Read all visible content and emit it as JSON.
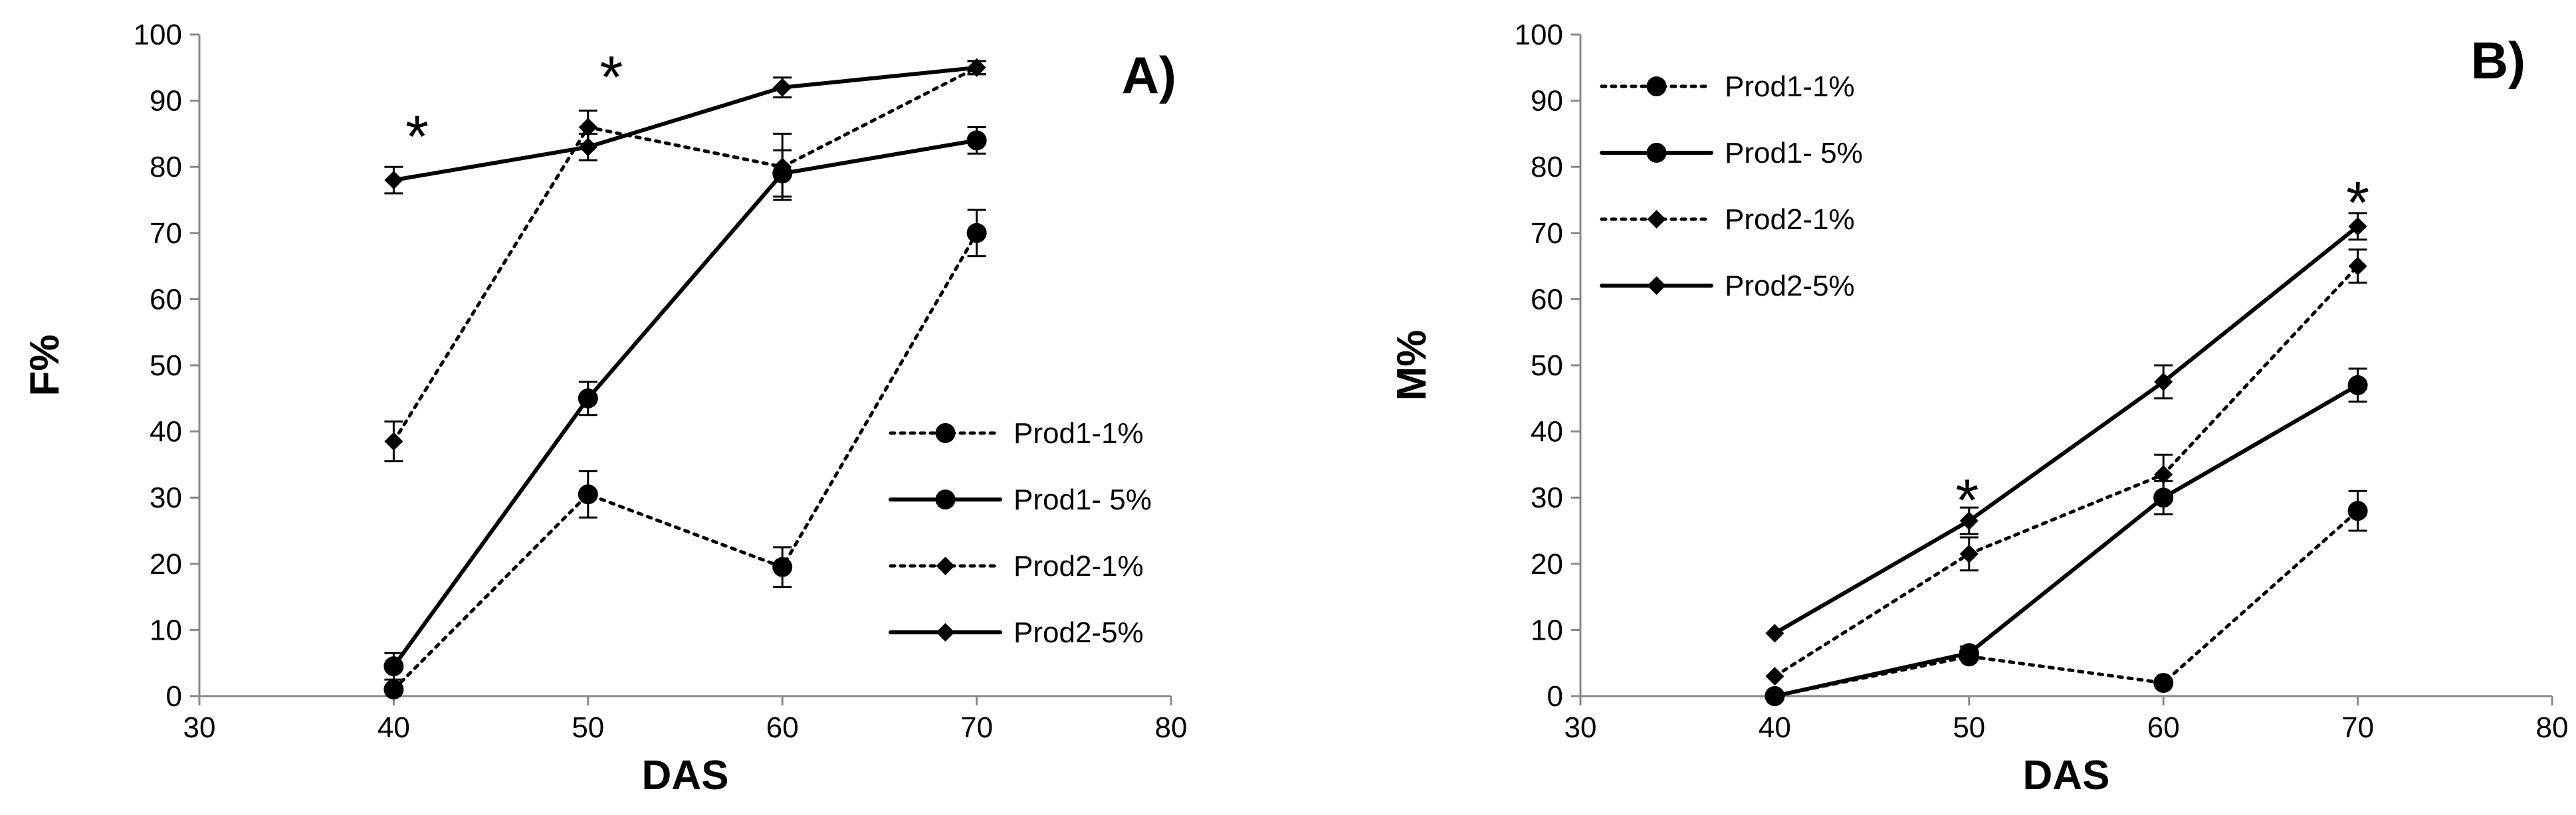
{
  "chart_data": [
    {
      "type": "line",
      "panel_label": "A)",
      "xlabel": "DAS",
      "ylabel": "F%",
      "xlim": [
        30,
        80
      ],
      "ylim": [
        0,
        100
      ],
      "xticks": [
        30,
        40,
        50,
        60,
        70,
        80
      ],
      "yticks": [
        0,
        10,
        20,
        30,
        40,
        50,
        60,
        70,
        80,
        90,
        100
      ],
      "legend_position": "center-right",
      "series": [
        {
          "name": "Prod1-1%",
          "line": "dotted",
          "marker": "circle",
          "x": [
            40,
            50,
            60,
            70
          ],
          "y": [
            1,
            30.5,
            19.5,
            70
          ],
          "err": [
            0,
            3.5,
            3,
            3.5
          ]
        },
        {
          "name": "Prod1- 5%",
          "line": "solid",
          "marker": "circle",
          "x": [
            40,
            50,
            60,
            70
          ],
          "y": [
            4.5,
            45,
            79,
            84
          ],
          "err": [
            2,
            2.5,
            3.5,
            2
          ]
        },
        {
          "name": "Prod2-1%",
          "line": "dotted",
          "marker": "diamond",
          "x": [
            40,
            50,
            60,
            70
          ],
          "y": [
            38.5,
            86,
            80,
            95
          ],
          "err": [
            3,
            2.5,
            5,
            1
          ]
        },
        {
          "name": "Prod2-5%",
          "line": "solid",
          "marker": "diamond",
          "x": [
            40,
            50,
            60,
            70
          ],
          "y": [
            78,
            83,
            92,
            95
          ],
          "err": [
            2,
            2,
            1.5,
            1
          ]
        }
      ],
      "annotations": [
        {
          "text": "*",
          "x": 41.2,
          "y": 86
        },
        {
          "text": "*",
          "x": 51.2,
          "y": 95
        }
      ]
    },
    {
      "type": "line",
      "panel_label": "B)",
      "xlabel": "DAS",
      "ylabel": "M%",
      "xlim": [
        30,
        80
      ],
      "ylim": [
        0,
        100
      ],
      "xticks": [
        30,
        40,
        50,
        60,
        70,
        80
      ],
      "yticks": [
        0,
        10,
        20,
        30,
        40,
        50,
        60,
        70,
        80,
        90,
        100
      ],
      "legend_position": "top-left",
      "series": [
        {
          "name": "Prod1-1%",
          "line": "dotted",
          "marker": "circle",
          "x": [
            40,
            50,
            60,
            70
          ],
          "y": [
            0,
            6,
            2,
            28
          ],
          "err": [
            0,
            0,
            0,
            3
          ]
        },
        {
          "name": "Prod1- 5%",
          "line": "solid",
          "marker": "circle",
          "x": [
            40,
            50,
            60,
            70
          ],
          "y": [
            0,
            6.5,
            30,
            47
          ],
          "err": [
            0,
            1,
            2.5,
            2.5
          ]
        },
        {
          "name": "Prod2-1%",
          "line": "dotted",
          "marker": "diamond",
          "x": [
            40,
            50,
            60,
            70
          ],
          "y": [
            3,
            21.5,
            33.5,
            65
          ],
          "err": [
            0,
            2.5,
            3,
            2.5
          ]
        },
        {
          "name": "Prod2-5%",
          "line": "solid",
          "marker": "diamond",
          "x": [
            40,
            50,
            60,
            70
          ],
          "y": [
            9.5,
            26.5,
            47.5,
            71
          ],
          "err": [
            0,
            2,
            2.5,
            2
          ]
        }
      ],
      "annotations": [
        {
          "text": "*",
          "x": 49.9,
          "y": 31
        },
        {
          "text": "*",
          "x": 70,
          "y": 76
        }
      ]
    }
  ]
}
